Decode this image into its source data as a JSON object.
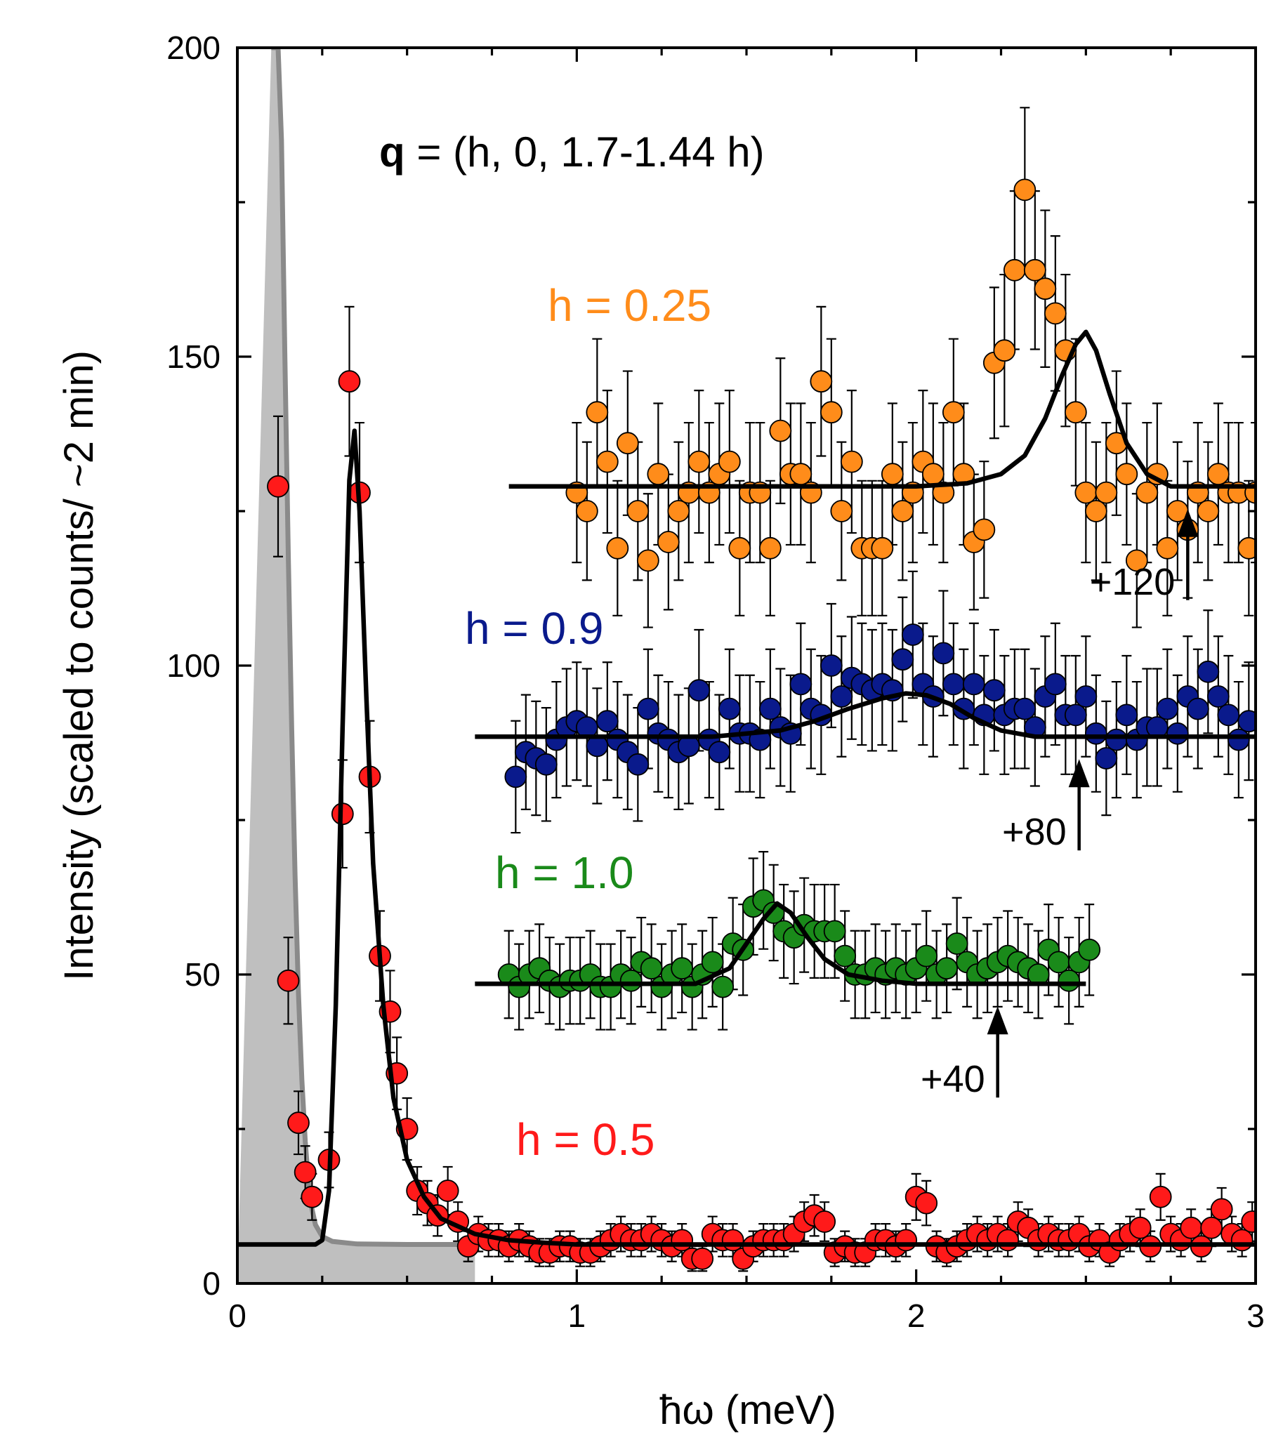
{
  "chart_data": {
    "type": "scatter",
    "title": "",
    "xlabel": "ħω (meV)",
    "ylabel": "Intensity (scaled to counts/ ~2 min)",
    "xlim": [
      0,
      3
    ],
    "ylim": [
      0,
      200
    ],
    "x_ticks": [
      {
        "v": 0,
        "label": "0"
      },
      {
        "v": 1,
        "label": "1"
      },
      {
        "v": 2,
        "label": "2"
      },
      {
        "v": 3,
        "label": "3"
      }
    ],
    "y_ticks": [
      {
        "v": 0,
        "label": "0"
      },
      {
        "v": 50,
        "label": "50"
      },
      {
        "v": 100,
        "label": "100"
      },
      {
        "v": 150,
        "label": "150"
      },
      {
        "v": 200,
        "label": "200"
      }
    ],
    "annotation": {
      "bold": "q",
      "rest": " = (h, 0, 1.7-1.44 h)"
    },
    "resolution": {
      "name": "resolution",
      "color": "#bfbfbf",
      "line_color": "#8a8a8a",
      "x": [
        0.1,
        0.12,
        0.13,
        0.14,
        0.15,
        0.16,
        0.17,
        0.18,
        0.19,
        0.2,
        0.21,
        0.22,
        0.23,
        0.25,
        0.28,
        0.35,
        0.5,
        0.7
      ],
      "y": [
        200,
        200,
        185,
        150,
        118,
        90,
        66,
        47,
        33,
        23,
        16,
        12,
        9.5,
        7.6,
        6.8,
        6.4,
        6.3,
        6.3
      ]
    },
    "series": [
      {
        "name": "h = 0.25",
        "label": "h = 0.25",
        "color": "#ff8c1a",
        "offset_label": "+120",
        "offset_arrow_x": 2.8,
        "x": [
          1.0,
          1.03,
          1.06,
          1.09,
          1.12,
          1.15,
          1.18,
          1.21,
          1.24,
          1.27,
          1.3,
          1.33,
          1.36,
          1.39,
          1.42,
          1.45,
          1.48,
          1.51,
          1.54,
          1.57,
          1.6,
          1.63,
          1.66,
          1.69,
          1.72,
          1.75,
          1.78,
          1.81,
          1.84,
          1.87,
          1.9,
          1.93,
          1.96,
          1.99,
          2.02,
          2.05,
          2.08,
          2.11,
          2.14,
          2.17,
          2.2,
          2.23,
          2.26,
          2.29,
          2.32,
          2.35,
          2.38,
          2.41,
          2.44,
          2.47,
          2.5,
          2.53,
          2.56,
          2.59,
          2.62,
          2.65,
          2.68,
          2.71,
          2.74,
          2.77,
          2.8,
          2.83,
          2.86,
          2.89,
          2.92,
          2.95,
          2.98,
          3.0
        ],
        "y": [
          128,
          125,
          141,
          133,
          119,
          136,
          125,
          117,
          131,
          120,
          125,
          128,
          133,
          128,
          131,
          133,
          119,
          128,
          128,
          119,
          138,
          131,
          131,
          128,
          146,
          141,
          125,
          133,
          119,
          119,
          119,
          131,
          125,
          128,
          133,
          131,
          128,
          141,
          131,
          120,
          122,
          149,
          151,
          164,
          177,
          164,
          161,
          157,
          151,
          141,
          128,
          125,
          128,
          136,
          131,
          117,
          128,
          131,
          119,
          125,
          122,
          128,
          125,
          131,
          128,
          128,
          119,
          128
        ],
        "fit_x": [
          0.8,
          2.0,
          2.15,
          2.25,
          2.32,
          2.38,
          2.43,
          2.47,
          2.5,
          2.53,
          2.57,
          2.62,
          2.68,
          2.75,
          3.0
        ],
        "fit_y": [
          129,
          129,
          129.5,
          131,
          134,
          140,
          147,
          152,
          154,
          151,
          144,
          136,
          131,
          129,
          129
        ]
      },
      {
        "name": "h = 0.9",
        "label": "h = 0.9",
        "color": "#0a1a8c",
        "offset_label": "+80",
        "offset_arrow_x": 2.48,
        "x": [
          0.82,
          0.85,
          0.88,
          0.91,
          0.94,
          0.97,
          1.0,
          1.03,
          1.06,
          1.09,
          1.12,
          1.15,
          1.18,
          1.21,
          1.24,
          1.27,
          1.3,
          1.33,
          1.36,
          1.39,
          1.42,
          1.45,
          1.48,
          1.51,
          1.54,
          1.57,
          1.6,
          1.63,
          1.66,
          1.69,
          1.72,
          1.75,
          1.78,
          1.81,
          1.84,
          1.87,
          1.9,
          1.93,
          1.96,
          1.99,
          2.02,
          2.05,
          2.08,
          2.11,
          2.14,
          2.17,
          2.2,
          2.23,
          2.26,
          2.29,
          2.32,
          2.35,
          2.38,
          2.41,
          2.44,
          2.47,
          2.5,
          2.53,
          2.56,
          2.59,
          2.62,
          2.65,
          2.68,
          2.71,
          2.74,
          2.77,
          2.8,
          2.83,
          2.86,
          2.89,
          2.92,
          2.95,
          2.98
        ],
        "y": [
          82,
          86,
          85,
          84,
          88,
          90,
          91,
          90,
          87,
          91,
          88,
          86,
          84,
          93,
          89,
          88,
          86,
          87,
          96,
          88,
          86,
          93,
          89,
          89,
          88,
          93,
          90,
          89,
          97,
          93,
          92,
          100,
          95,
          98,
          97,
          96,
          97,
          96,
          101,
          105,
          97,
          95,
          102,
          97,
          93,
          97,
          92,
          96,
          92,
          93,
          93,
          90,
          95,
          97,
          92,
          92,
          95,
          89,
          85,
          88,
          92,
          88,
          90,
          90,
          93,
          89,
          95,
          93,
          99,
          95,
          92,
          88,
          91
        ],
        "fit_x": [
          0.7,
          1.4,
          1.6,
          1.7,
          1.8,
          1.9,
          1.97,
          2.03,
          2.1,
          2.17,
          2.25,
          2.35,
          3.0
        ],
        "fit_y": [
          88.5,
          88.5,
          89.5,
          91,
          93,
          94.7,
          95.5,
          95.2,
          93.8,
          91.5,
          89.5,
          88.5,
          88.5
        ]
      },
      {
        "name": "h = 1.0",
        "label": "h = 1.0",
        "color": "#1a8a1a",
        "offset_label": "+40",
        "offset_arrow_x": 2.24,
        "x": [
          0.8,
          0.83,
          0.86,
          0.89,
          0.92,
          0.95,
          0.98,
          1.01,
          1.04,
          1.07,
          1.1,
          1.13,
          1.16,
          1.19,
          1.22,
          1.25,
          1.28,
          1.31,
          1.34,
          1.37,
          1.4,
          1.43,
          1.46,
          1.49,
          1.52,
          1.55,
          1.58,
          1.61,
          1.64,
          1.67,
          1.7,
          1.73,
          1.76,
          1.79,
          1.82,
          1.85,
          1.88,
          1.91,
          1.94,
          1.97,
          2.0,
          2.03,
          2.06,
          2.09,
          2.12,
          2.15,
          2.18,
          2.21,
          2.24,
          2.27,
          2.3,
          2.33,
          2.36,
          2.39,
          2.42,
          2.45,
          2.48,
          2.51
        ],
        "y": [
          50,
          48,
          50,
          51,
          49,
          48,
          49,
          49,
          50,
          48,
          48,
          50,
          49,
          52,
          51,
          48,
          50,
          51,
          48,
          50,
          52,
          48,
          55,
          54,
          61,
          62,
          60,
          57,
          56,
          58,
          57,
          57,
          57,
          53,
          50,
          50,
          51,
          50,
          51,
          50,
          51,
          53,
          50,
          51,
          55,
          52,
          50,
          51,
          52,
          53,
          52,
          51,
          50,
          54,
          52,
          49,
          52,
          54
        ],
        "fit_x": [
          0.7,
          1.35,
          1.45,
          1.5,
          1.55,
          1.59,
          1.63,
          1.68,
          1.73,
          1.8,
          1.9,
          2.0,
          2.5
        ],
        "fit_y": [
          48.5,
          48.5,
          51,
          55,
          59,
          61.5,
          60,
          56,
          52.5,
          50,
          49,
          48.5,
          48.5
        ]
      },
      {
        "name": "h = 0.5",
        "label": "h = 0.5",
        "color": "#ff1a1a",
        "offset_label": "",
        "offset_arrow_x": null,
        "x": [
          0.12,
          0.15,
          0.18,
          0.2,
          0.22,
          0.27,
          0.31,
          0.33,
          0.36,
          0.39,
          0.42,
          0.45,
          0.47,
          0.5,
          0.53,
          0.56,
          0.59,
          0.62,
          0.65,
          0.68,
          0.71,
          0.74,
          0.77,
          0.8,
          0.83,
          0.86,
          0.89,
          0.92,
          0.95,
          0.98,
          1.01,
          1.04,
          1.07,
          1.1,
          1.13,
          1.16,
          1.19,
          1.22,
          1.25,
          1.28,
          1.31,
          1.34,
          1.37,
          1.4,
          1.43,
          1.46,
          1.49,
          1.52,
          1.55,
          1.58,
          1.61,
          1.64,
          1.67,
          1.7,
          1.73,
          1.76,
          1.79,
          1.82,
          1.85,
          1.88,
          1.91,
          1.94,
          1.97,
          2.0,
          2.03,
          2.06,
          2.09,
          2.12,
          2.15,
          2.18,
          2.21,
          2.24,
          2.27,
          2.3,
          2.33,
          2.36,
          2.39,
          2.42,
          2.45,
          2.48,
          2.51,
          2.54,
          2.57,
          2.6,
          2.63,
          2.66,
          2.69,
          2.72,
          2.75,
          2.78,
          2.81,
          2.84,
          2.87,
          2.9,
          2.93,
          2.96,
          2.99
        ],
        "y": [
          129,
          49,
          26,
          18,
          14,
          20,
          76,
          146,
          128,
          82,
          53,
          44,
          34,
          25,
          15,
          13,
          11,
          15,
          10,
          6,
          8,
          7,
          7,
          6,
          7,
          6,
          5,
          5,
          6,
          6,
          5,
          5,
          6,
          7,
          8,
          7,
          7,
          8,
          7,
          6,
          7,
          4,
          4,
          8,
          7,
          7,
          4,
          6,
          7,
          7,
          7,
          8,
          10,
          11,
          10,
          5,
          6,
          5,
          5,
          7,
          7,
          6,
          7,
          14,
          13,
          6,
          5,
          6,
          7,
          8,
          7,
          8,
          7,
          10,
          9,
          7,
          8,
          7,
          7,
          8,
          6,
          7,
          5,
          7,
          8,
          9,
          6,
          14,
          8,
          7,
          9,
          6,
          9,
          12,
          8,
          7,
          10
        ],
        "fit_x": [
          0.0,
          0.23,
          0.25,
          0.27,
          0.29,
          0.31,
          0.33,
          0.345,
          0.36,
          0.38,
          0.4,
          0.43,
          0.46,
          0.5,
          0.55,
          0.6,
          0.7,
          0.8,
          0.9,
          1.0,
          3.0
        ],
        "fit_y": [
          6.3,
          6.3,
          7,
          15,
          45,
          90,
          130,
          138,
          125,
          95,
          68,
          45,
          30,
          20,
          14,
          10.5,
          8,
          7,
          6.6,
          6.3,
          6.3
        ]
      }
    ]
  }
}
